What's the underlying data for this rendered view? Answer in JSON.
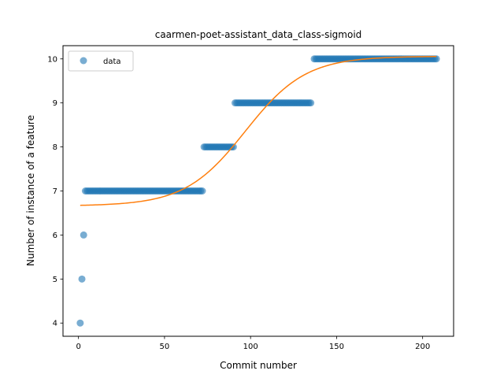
{
  "chart_data": {
    "type": "scatter",
    "title": "caarmen-poet-assistant_data_class-sigmoid",
    "xlabel": "Commit number",
    "ylabel": "Number of instance of a feature",
    "xlim": [
      -9,
      218
    ],
    "ylim": [
      3.7,
      10.3
    ],
    "xticks": [
      0,
      50,
      100,
      150,
      200
    ],
    "yticks": [
      4,
      5,
      6,
      7,
      8,
      9,
      10
    ],
    "grid": false,
    "legend_position": "top-left",
    "colors": {
      "data": "#1f77b4",
      "fit": "#ff7f0e"
    },
    "series": [
      {
        "name": "data",
        "kind": "scatter",
        "segments": [
          {
            "x_start": 1,
            "x_end": 1,
            "y": 4
          },
          {
            "x_start": 2,
            "x_end": 2,
            "y": 5
          },
          {
            "x_start": 3,
            "x_end": 3,
            "y": 6
          },
          {
            "x_start": 4,
            "x_end": 72,
            "y": 7
          },
          {
            "x_start": 73,
            "x_end": 90,
            "y": 8
          },
          {
            "x_start": 91,
            "x_end": 135,
            "y": 9
          },
          {
            "x_start": 137,
            "x_end": 208,
            "y": 10
          }
        ]
      },
      {
        "name": "",
        "kind": "line",
        "model": "sigmoid",
        "params": {
          "lower": 6.66,
          "upper": 10.06,
          "midpoint": 97,
          "slope": 0.057
        },
        "x_range": [
          1,
          208
        ]
      }
    ]
  }
}
